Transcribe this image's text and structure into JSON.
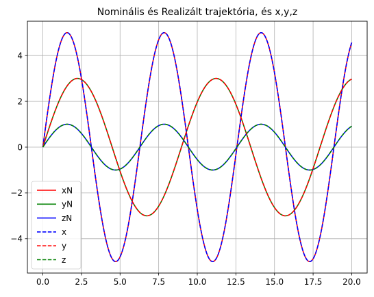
{
  "chart_data": {
    "type": "line",
    "title": "Nominális és Realizált trajektória, és x,y,z",
    "xlabel": "",
    "ylabel": "",
    "xlim": [
      -1.0,
      21.0
    ],
    "ylim": [
      -5.5,
      5.5
    ],
    "xticks": [
      0.0,
      2.5,
      5.0,
      7.5,
      10.0,
      12.5,
      15.0,
      17.5,
      20.0
    ],
    "xtick_labels": [
      "0.0",
      "2.5",
      "5.0",
      "7.5",
      "10.0",
      "12.5",
      "15.0",
      "17.5",
      "20.0"
    ],
    "yticks": [
      -4,
      -2,
      0,
      2,
      4
    ],
    "ytick_labels": [
      "−4",
      "−2",
      "0",
      "2",
      "4"
    ],
    "grid": true,
    "legend_position": "lower-left",
    "x_range": [
      0,
      20
    ],
    "series": [
      {
        "name": "xN",
        "color": "#ff0000",
        "style": "solid",
        "expression": "5*sin(t)"
      },
      {
        "name": "yN",
        "color": "#008000",
        "style": "solid",
        "expression": "3*sin(0.7*t)"
      },
      {
        "name": "zN",
        "color": "#0000ff",
        "style": "solid",
        "expression": "sin(t)"
      },
      {
        "name": "x",
        "color": "#0000ff",
        "style": "dashed",
        "expression": "5*sin(t)"
      },
      {
        "name": "y",
        "color": "#ff0000",
        "style": "dashed",
        "expression": "3*sin(0.7*t)"
      },
      {
        "name": "z",
        "color": "#008000",
        "style": "dashed",
        "expression": "sin(t)"
      }
    ]
  }
}
